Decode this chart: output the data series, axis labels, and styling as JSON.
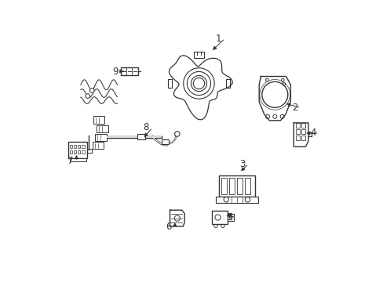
{
  "background_color": "#ffffff",
  "line_color": "#333333",
  "line_width": 1.0,
  "figsize": [
    4.89,
    3.6
  ],
  "dpi": 100,
  "label_data": [
    [
      1,
      0.595,
      0.865,
      0.568,
      0.818
    ],
    [
      2,
      0.865,
      0.618,
      0.828,
      0.635
    ],
    [
      3,
      0.68,
      0.418,
      0.668,
      0.388
    ],
    [
      4,
      0.93,
      0.528,
      0.898,
      0.528
    ],
    [
      5,
      0.635,
      0.228,
      0.615,
      0.238
    ],
    [
      6,
      0.418,
      0.195,
      0.438,
      0.218
    ],
    [
      7,
      0.068,
      0.428,
      0.09,
      0.458
    ],
    [
      8,
      0.338,
      0.548,
      0.325,
      0.508
    ],
    [
      9,
      0.228,
      0.748,
      0.258,
      0.748
    ]
  ]
}
